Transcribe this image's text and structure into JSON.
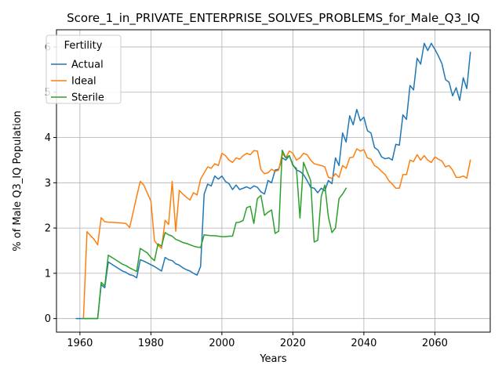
{
  "chart_data": {
    "type": "line",
    "title": "Score_1_in_PRIVATE_ENTERPRISE_SOLVES_PROBLEMS_for_Male_Q3_IQ",
    "xlabel": "Years",
    "ylabel": "% of Male Q3_IQ Population",
    "xlim": [
      1953.4,
      2075.6
    ],
    "ylim": [
      -0.3,
      6.38
    ],
    "xticks": [
      1960,
      1980,
      2000,
      2020,
      2040,
      2060
    ],
    "yticks": [
      0,
      1,
      2,
      3,
      4,
      5,
      6
    ],
    "grid": true,
    "legend": {
      "title": "Fertility",
      "placement": "top-left"
    },
    "series": [
      {
        "name": "Actual",
        "color": "#1f77b4",
        "points": [
          [
            1959,
            0
          ],
          [
            1960,
            0
          ],
          [
            1961,
            0
          ],
          [
            1962,
            0
          ],
          [
            1963,
            0
          ],
          [
            1964,
            0
          ],
          [
            1965,
            0
          ],
          [
            1966,
            0.75
          ],
          [
            1967,
            0.68
          ],
          [
            1968,
            1.25
          ],
          [
            1969,
            1.2
          ],
          [
            1970,
            1.15
          ],
          [
            1971,
            1.1
          ],
          [
            1972,
            1.05
          ],
          [
            1973,
            1.02
          ],
          [
            1974,
            0.97
          ],
          [
            1975,
            0.95
          ],
          [
            1976,
            0.9
          ],
          [
            1977,
            1.3
          ],
          [
            1978,
            1.27
          ],
          [
            1979,
            1.23
          ],
          [
            1980,
            1.19
          ],
          [
            1981,
            1.15
          ],
          [
            1982,
            1.1
          ],
          [
            1983,
            1.05
          ],
          [
            1984,
            1.35
          ],
          [
            1985,
            1.3
          ],
          [
            1986,
            1.28
          ],
          [
            1987,
            1.21
          ],
          [
            1988,
            1.18
          ],
          [
            1989,
            1.12
          ],
          [
            1990,
            1.08
          ],
          [
            1991,
            1.05
          ],
          [
            1992,
            1.0
          ],
          [
            1993,
            0.96
          ],
          [
            1994,
            1.15
          ],
          [
            1995,
            2.75
          ],
          [
            1996,
            2.97
          ],
          [
            1997,
            2.93
          ],
          [
            1998,
            3.15
          ],
          [
            1999,
            3.08
          ],
          [
            2000,
            3.15
          ],
          [
            2001,
            3.03
          ],
          [
            2002,
            2.98
          ],
          [
            2003,
            2.85
          ],
          [
            2004,
            2.95
          ],
          [
            2005,
            2.85
          ],
          [
            2006,
            2.88
          ],
          [
            2007,
            2.91
          ],
          [
            2008,
            2.87
          ],
          [
            2009,
            2.93
          ],
          [
            2010,
            2.9
          ],
          [
            2011,
            2.8
          ],
          [
            2012,
            2.75
          ],
          [
            2013,
            3.05
          ],
          [
            2014,
            3.0
          ],
          [
            2015,
            3.28
          ],
          [
            2016,
            3.3
          ],
          [
            2017,
            3.55
          ],
          [
            2018,
            3.5
          ],
          [
            2019,
            3.6
          ],
          [
            2020,
            3.4
          ],
          [
            2021,
            3.28
          ],
          [
            2022,
            3.25
          ],
          [
            2023,
            3.18
          ],
          [
            2024,
            3.05
          ],
          [
            2025,
            2.9
          ],
          [
            2026,
            2.88
          ],
          [
            2027,
            2.78
          ],
          [
            2028,
            2.88
          ],
          [
            2029,
            2.82
          ],
          [
            2030,
            3.05
          ],
          [
            2031,
            2.98
          ],
          [
            2032,
            3.55
          ],
          [
            2033,
            3.38
          ],
          [
            2034,
            4.1
          ],
          [
            2035,
            3.9
          ],
          [
            2036,
            4.48
          ],
          [
            2037,
            4.28
          ],
          [
            2038,
            4.62
          ],
          [
            2039,
            4.37
          ],
          [
            2040,
            4.45
          ],
          [
            2041,
            4.15
          ],
          [
            2042,
            4.1
          ],
          [
            2043,
            3.78
          ],
          [
            2044,
            3.72
          ],
          [
            2045,
            3.57
          ],
          [
            2046,
            3.53
          ],
          [
            2047,
            3.55
          ],
          [
            2048,
            3.5
          ],
          [
            2049,
            3.85
          ],
          [
            2050,
            3.83
          ],
          [
            2051,
            4.5
          ],
          [
            2052,
            4.4
          ],
          [
            2053,
            5.15
          ],
          [
            2054,
            5.05
          ],
          [
            2055,
            5.75
          ],
          [
            2056,
            5.62
          ],
          [
            2057,
            6.08
          ],
          [
            2058,
            5.92
          ],
          [
            2059,
            6.08
          ],
          [
            2060,
            5.95
          ],
          [
            2061,
            5.8
          ],
          [
            2062,
            5.63
          ],
          [
            2063,
            5.28
          ],
          [
            2064,
            5.22
          ],
          [
            2065,
            4.92
          ],
          [
            2066,
            5.1
          ],
          [
            2067,
            4.82
          ],
          [
            2068,
            5.32
          ],
          [
            2069,
            5.08
          ],
          [
            2070,
            5.88
          ]
        ]
      },
      {
        "name": "Ideal",
        "color": "#ff7f0e",
        "points": [
          [
            1961,
            0
          ],
          [
            1962,
            1.92
          ],
          [
            1963,
            1.83
          ],
          [
            1964,
            1.75
          ],
          [
            1965,
            1.63
          ],
          [
            1966,
            2.23
          ],
          [
            1967,
            2.14
          ],
          [
            1968,
            2.13
          ],
          [
            1970,
            2.12
          ],
          [
            1972,
            2.11
          ],
          [
            1973,
            2.1
          ],
          [
            1974,
            2.01
          ],
          [
            1975,
            2.35
          ],
          [
            1976,
            2.7
          ],
          [
            1977,
            3.03
          ],
          [
            1978,
            2.95
          ],
          [
            1979,
            2.77
          ],
          [
            1980,
            2.6
          ],
          [
            1981,
            1.72
          ],
          [
            1982,
            1.62
          ],
          [
            1983,
            1.55
          ],
          [
            1984,
            2.17
          ],
          [
            1985,
            2.08
          ],
          [
            1986,
            3.03
          ],
          [
            1987,
            1.93
          ],
          [
            1988,
            2.83
          ],
          [
            1989,
            2.75
          ],
          [
            1990,
            2.68
          ],
          [
            1991,
            2.62
          ],
          [
            1992,
            2.78
          ],
          [
            1993,
            2.73
          ],
          [
            1994,
            3.08
          ],
          [
            1995,
            3.22
          ],
          [
            1996,
            3.35
          ],
          [
            1997,
            3.32
          ],
          [
            1998,
            3.42
          ],
          [
            1999,
            3.38
          ],
          [
            2000,
            3.65
          ],
          [
            2001,
            3.6
          ],
          [
            2002,
            3.5
          ],
          [
            2003,
            3.45
          ],
          [
            2004,
            3.55
          ],
          [
            2005,
            3.52
          ],
          [
            2006,
            3.6
          ],
          [
            2007,
            3.65
          ],
          [
            2008,
            3.62
          ],
          [
            2009,
            3.71
          ],
          [
            2010,
            3.7
          ],
          [
            2011,
            3.29
          ],
          [
            2012,
            3.2
          ],
          [
            2013,
            3.22
          ],
          [
            2014,
            3.3
          ],
          [
            2015,
            3.25
          ],
          [
            2016,
            3.28
          ],
          [
            2017,
            3.65
          ],
          [
            2018,
            3.55
          ],
          [
            2019,
            3.7
          ],
          [
            2020,
            3.65
          ],
          [
            2021,
            3.5
          ],
          [
            2022,
            3.55
          ],
          [
            2023,
            3.65
          ],
          [
            2024,
            3.62
          ],
          [
            2025,
            3.5
          ],
          [
            2026,
            3.42
          ],
          [
            2027,
            3.4
          ],
          [
            2028,
            3.38
          ],
          [
            2029,
            3.35
          ],
          [
            2030,
            3.12
          ],
          [
            2031,
            3.1
          ],
          [
            2032,
            3.2
          ],
          [
            2033,
            3.12
          ],
          [
            2034,
            3.38
          ],
          [
            2035,
            3.32
          ],
          [
            2036,
            3.55
          ],
          [
            2037,
            3.57
          ],
          [
            2038,
            3.75
          ],
          [
            2039,
            3.7
          ],
          [
            2040,
            3.73
          ],
          [
            2041,
            3.55
          ],
          [
            2042,
            3.52
          ],
          [
            2043,
            3.38
          ],
          [
            2044,
            3.33
          ],
          [
            2045,
            3.25
          ],
          [
            2046,
            3.18
          ],
          [
            2047,
            3.05
          ],
          [
            2048,
            2.97
          ],
          [
            2049,
            2.88
          ],
          [
            2050,
            2.88
          ],
          [
            2051,
            3.18
          ],
          [
            2052,
            3.18
          ],
          [
            2053,
            3.5
          ],
          [
            2054,
            3.47
          ],
          [
            2055,
            3.62
          ],
          [
            2056,
            3.5
          ],
          [
            2057,
            3.6
          ],
          [
            2058,
            3.5
          ],
          [
            2059,
            3.45
          ],
          [
            2060,
            3.57
          ],
          [
            2061,
            3.52
          ],
          [
            2062,
            3.48
          ],
          [
            2063,
            3.35
          ],
          [
            2064,
            3.38
          ],
          [
            2065,
            3.28
          ],
          [
            2066,
            3.12
          ],
          [
            2067,
            3.12
          ],
          [
            2068,
            3.15
          ],
          [
            2069,
            3.1
          ],
          [
            2070,
            3.5
          ]
        ]
      },
      {
        "name": "Sterile",
        "color": "#2ca02c",
        "points": [
          [
            1961,
            0
          ],
          [
            1962,
            0
          ],
          [
            1963,
            0
          ],
          [
            1964,
            0
          ],
          [
            1965,
            0
          ],
          [
            1966,
            0.8
          ],
          [
            1967,
            0.72
          ],
          [
            1968,
            1.4
          ],
          [
            1969,
            1.35
          ],
          [
            1970,
            1.3
          ],
          [
            1971,
            1.25
          ],
          [
            1972,
            1.2
          ],
          [
            1973,
            1.17
          ],
          [
            1974,
            1.12
          ],
          [
            1975,
            1.08
          ],
          [
            1976,
            1.04
          ],
          [
            1977,
            1.55
          ],
          [
            1978,
            1.5
          ],
          [
            1979,
            1.45
          ],
          [
            1980,
            1.35
          ],
          [
            1981,
            1.28
          ],
          [
            1982,
            1.65
          ],
          [
            1983,
            1.6
          ],
          [
            1984,
            1.9
          ],
          [
            1985,
            1.85
          ],
          [
            1986,
            1.82
          ],
          [
            1987,
            1.75
          ],
          [
            1988,
            1.72
          ],
          [
            1989,
            1.68
          ],
          [
            1990,
            1.66
          ],
          [
            1991,
            1.63
          ],
          [
            1992,
            1.6
          ],
          [
            1993,
            1.58
          ],
          [
            1994,
            1.57
          ],
          [
            1995,
            1.85
          ],
          [
            1996,
            1.84
          ],
          [
            1997,
            1.83
          ],
          [
            1998,
            1.83
          ],
          [
            1999,
            1.82
          ],
          [
            2000,
            1.81
          ],
          [
            2001,
            1.81
          ],
          [
            2002,
            1.82
          ],
          [
            2003,
            1.82
          ],
          [
            2004,
            2.12
          ],
          [
            2005,
            2.13
          ],
          [
            2006,
            2.17
          ],
          [
            2007,
            2.45
          ],
          [
            2008,
            2.48
          ],
          [
            2009,
            2.1
          ],
          [
            2010,
            2.65
          ],
          [
            2011,
            2.72
          ],
          [
            2012,
            2.28
          ],
          [
            2013,
            2.35
          ],
          [
            2014,
            2.4
          ],
          [
            2015,
            1.88
          ],
          [
            2016,
            1.93
          ],
          [
            2017,
            3.72
          ],
          [
            2018,
            3.55
          ],
          [
            2019,
            3.6
          ],
          [
            2020,
            3.38
          ],
          [
            2021,
            3.32
          ],
          [
            2022,
            2.22
          ],
          [
            2023,
            3.45
          ],
          [
            2024,
            3.25
          ],
          [
            2025,
            3.05
          ],
          [
            2026,
            1.69
          ],
          [
            2027,
            1.73
          ],
          [
            2028,
            2.7
          ],
          [
            2029,
            2.95
          ],
          [
            2030,
            2.25
          ],
          [
            2031,
            1.9
          ],
          [
            2032,
            2.0
          ],
          [
            2033,
            2.65
          ],
          [
            2034,
            2.75
          ],
          [
            2035,
            2.88
          ]
        ]
      }
    ]
  }
}
